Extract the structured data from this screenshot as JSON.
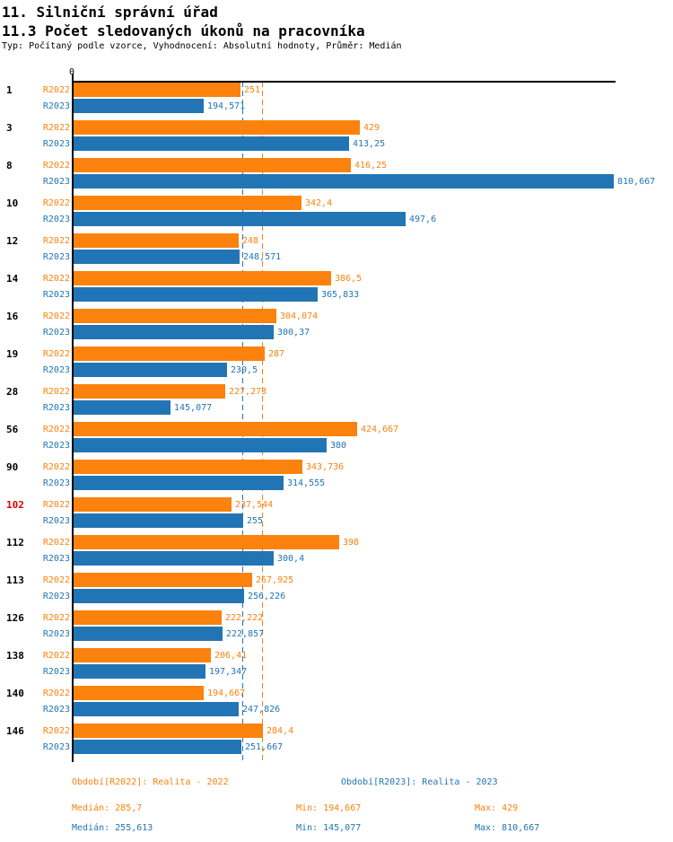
{
  "header": {
    "title1": "11. Silniční správní úřad",
    "title2": "11.3 Počet sledovaných úkonů na pracovníka",
    "subtitle": "Typ: Počítaný podle vzorce, Vyhodnocení: Absolutní hodnoty, Průměr: Medián"
  },
  "colors": {
    "r2022": "#FB820D",
    "r2023": "#2275B4",
    "highlight_label": "#DD0000",
    "normal_label": "#000000",
    "axis": "#000000"
  },
  "chart_data": {
    "type": "bar",
    "orientation": "horizontal",
    "x_axis": {
      "zero_label": "0",
      "min": 0,
      "max": 815,
      "grid": false
    },
    "series_names": [
      "R2022",
      "R2023"
    ],
    "median_lines": [
      {
        "series": "R2022",
        "value": 285.7
      },
      {
        "series": "R2023",
        "value": 255.613
      }
    ],
    "categories": [
      {
        "label": "1",
        "highlight": false,
        "R2022": {
          "v": 251,
          "text": "251"
        },
        "R2023": {
          "v": 194.571,
          "text": "194,571"
        }
      },
      {
        "label": "3",
        "highlight": false,
        "R2022": {
          "v": 429,
          "text": "429"
        },
        "R2023": {
          "v": 413.25,
          "text": "413,25"
        }
      },
      {
        "label": "8",
        "highlight": false,
        "R2022": {
          "v": 416.25,
          "text": "416,25"
        },
        "R2023": {
          "v": 810.667,
          "text": "810,667"
        }
      },
      {
        "label": "10",
        "highlight": false,
        "R2022": {
          "v": 342.4,
          "text": "342,4"
        },
        "R2023": {
          "v": 497.6,
          "text": "497,6"
        }
      },
      {
        "label": "12",
        "highlight": false,
        "R2022": {
          "v": 248,
          "text": "248"
        },
        "R2023": {
          "v": 248.571,
          "text": "248,571"
        }
      },
      {
        "label": "14",
        "highlight": false,
        "R2022": {
          "v": 386.5,
          "text": "386,5"
        },
        "R2023": {
          "v": 365.833,
          "text": "365,833"
        }
      },
      {
        "label": "16",
        "highlight": false,
        "R2022": {
          "v": 304.074,
          "text": "304,074"
        },
        "R2023": {
          "v": 300.37,
          "text": "300,37"
        }
      },
      {
        "label": "19",
        "highlight": false,
        "R2022": {
          "v": 287,
          "text": "287"
        },
        "R2023": {
          "v": 230.5,
          "text": "230,5"
        }
      },
      {
        "label": "28",
        "highlight": false,
        "R2022": {
          "v": 227.273,
          "text": "227,273"
        },
        "R2023": {
          "v": 145.077,
          "text": "145,077"
        }
      },
      {
        "label": "56",
        "highlight": false,
        "R2022": {
          "v": 424.667,
          "text": "424,667"
        },
        "R2023": {
          "v": 380,
          "text": "380"
        }
      },
      {
        "label": "90",
        "highlight": false,
        "R2022": {
          "v": 343.736,
          "text": "343,736"
        },
        "R2023": {
          "v": 314.555,
          "text": "314,555"
        }
      },
      {
        "label": "102",
        "highlight": true,
        "R2022": {
          "v": 237.544,
          "text": "237,544"
        },
        "R2023": {
          "v": 255,
          "text": "255"
        }
      },
      {
        "label": "112",
        "highlight": false,
        "R2022": {
          "v": 398,
          "text": "398"
        },
        "R2023": {
          "v": 300.4,
          "text": "300,4"
        }
      },
      {
        "label": "113",
        "highlight": false,
        "R2022": {
          "v": 267.925,
          "text": "267,925"
        },
        "R2023": {
          "v": 256.226,
          "text": "256,226"
        }
      },
      {
        "label": "126",
        "highlight": false,
        "R2022": {
          "v": 222.222,
          "text": "222,222"
        },
        "R2023": {
          "v": 222.857,
          "text": "222,857"
        }
      },
      {
        "label": "138",
        "highlight": false,
        "R2022": {
          "v": 206.41,
          "text": "206,41"
        },
        "R2023": {
          "v": 197.347,
          "text": "197,347"
        }
      },
      {
        "label": "140",
        "highlight": false,
        "R2022": {
          "v": 194.667,
          "text": "194,667"
        },
        "R2023": {
          "v": 247.826,
          "text": "247,826"
        }
      },
      {
        "label": "146",
        "highlight": false,
        "R2022": {
          "v": 284.4,
          "text": "284,4"
        },
        "R2023": {
          "v": 251.667,
          "text": "251,667"
        }
      }
    ]
  },
  "footer": {
    "legends": [
      {
        "series": "R2022",
        "label": "Období[R2022]: Realita - 2022"
      },
      {
        "series": "R2023",
        "label": "Období[R2023]: Realita - 2023"
      }
    ],
    "stats": [
      {
        "series": "R2022",
        "median": "Medián: 285,7",
        "min": "Min: 194,667",
        "max": "Max: 429"
      },
      {
        "series": "R2023",
        "median": "Medián: 255,613",
        "min": "Min: 145,077",
        "max": "Max: 810,667"
      }
    ]
  }
}
